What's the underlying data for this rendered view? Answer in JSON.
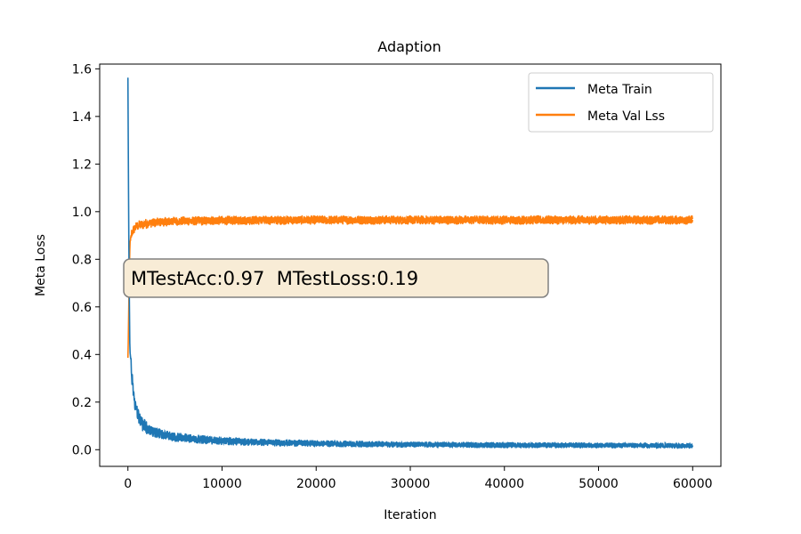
{
  "chart_data": {
    "type": "line",
    "title": "Adaption",
    "xlabel": "Iteration",
    "ylabel": "Meta Loss",
    "xlim": [
      -3000,
      63000
    ],
    "ylim": [
      -0.07,
      1.62
    ],
    "xticks": [
      0,
      10000,
      20000,
      30000,
      40000,
      50000,
      60000
    ],
    "xtick_labels": [
      "0",
      "10000",
      "20000",
      "30000",
      "40000",
      "50000",
      "60000"
    ],
    "yticks": [
      0.0,
      0.2,
      0.4,
      0.6,
      0.8,
      1.0,
      1.2,
      1.4,
      1.6
    ],
    "ytick_labels": [
      "0.0",
      "0.2",
      "0.4",
      "0.6",
      "0.8",
      "1.0",
      "1.2",
      "1.4",
      "1.6"
    ],
    "grid": false,
    "legend_position": "top-right",
    "series": [
      {
        "name": "Meta Train",
        "color": "#1f77b4",
        "x": [
          0,
          100,
          200,
          400,
          700,
          1000,
          1500,
          2000,
          3000,
          4000,
          5000,
          7000,
          10000,
          15000,
          20000,
          30000,
          40000,
          50000,
          60000
        ],
        "y": [
          1.54,
          0.85,
          0.45,
          0.3,
          0.2,
          0.14,
          0.1,
          0.08,
          0.065,
          0.055,
          0.048,
          0.04,
          0.032,
          0.026,
          0.022,
          0.018,
          0.016,
          0.015,
          0.014
        ]
      },
      {
        "name": "Meta Val Lss",
        "color": "#ff7f0e",
        "x": [
          0,
          100,
          200,
          400,
          700,
          1000,
          1500,
          2000,
          3000,
          5000,
          10000,
          20000,
          30000,
          40000,
          50000,
          60000
        ],
        "y": [
          0.38,
          0.6,
          0.85,
          0.91,
          0.93,
          0.94,
          0.945,
          0.95,
          0.955,
          0.96,
          0.963,
          0.965,
          0.965,
          0.965,
          0.965,
          0.965
        ]
      }
    ],
    "annotation": {
      "text": "MTestAcc:0.97  MTestLoss:0.19",
      "x": 0,
      "y": 0.72,
      "facecolor": "#f8ecd6"
    }
  }
}
